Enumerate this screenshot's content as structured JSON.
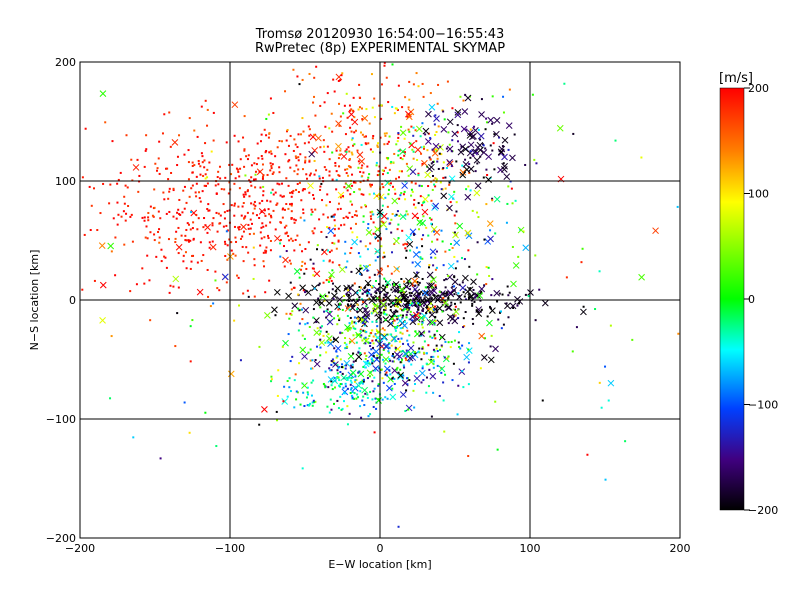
{
  "chart_data": {
    "type": "scatter",
    "title": "Tromsø 20120930 16:54:00−16:55:43",
    "subtitle": "RwPretec (8p) EXPERIMENTAL SKYMAP",
    "xlabel": "E−W location [km]",
    "ylabel": "N−S location [km]",
    "xlim": [
      -200,
      200
    ],
    "ylim": [
      -200,
      200
    ],
    "xticks": [
      -200,
      -100,
      0,
      100,
      200
    ],
    "yticks": [
      -200,
      -100,
      0,
      100,
      200
    ],
    "xtick_labels": [
      "−200",
      "−100",
      "0",
      "100",
      "200"
    ],
    "ytick_labels": [
      "−200",
      "−100",
      "0",
      "100",
      "200"
    ],
    "grid": true,
    "markers": {
      "small": "dot",
      "large": "x"
    },
    "colorbar": {
      "label": "[m/s]",
      "range": [
        -200,
        200
      ],
      "ticks": [
        200,
        100,
        0,
        -100,
        -200
      ],
      "tick_labels": [
        "200",
        "100",
        "0",
        "−100",
        "−200"
      ],
      "colors": [
        "#ff0000",
        "#ff8000",
        "#ffff00",
        "#00ff00",
        "#00ffff",
        "#0040ff",
        "#400080",
        "#000000"
      ]
    },
    "clusters": [
      {
        "cx": -85,
        "cy": 80,
        "sx": 50,
        "sy": 35,
        "n": 700,
        "v": 190,
        "vs": 15,
        "xfrac": 0.03
      },
      {
        "cx": -10,
        "cy": 140,
        "sx": 30,
        "sy": 30,
        "n": 180,
        "v": 170,
        "vs": 40,
        "xfrac": 0.05
      },
      {
        "cx": 20,
        "cy": 110,
        "sx": 25,
        "sy": 35,
        "n": 200,
        "v": 60,
        "vs": 90,
        "xfrac": 0.12
      },
      {
        "cx": 60,
        "cy": 125,
        "sx": 18,
        "sy": 18,
        "n": 120,
        "v": -170,
        "vs": 25,
        "xfrac": 0.5
      },
      {
        "cx": 20,
        "cy": 0,
        "sx": 35,
        "sy": 10,
        "n": 420,
        "v": -190,
        "vs": 20,
        "xfrac": 0.3
      },
      {
        "cx": 0,
        "cy": -25,
        "sx": 30,
        "sy": 20,
        "n": 320,
        "v": 30,
        "vs": 70,
        "xfrac": 0.12
      },
      {
        "cx": 5,
        "cy": -50,
        "sx": 28,
        "sy": 18,
        "n": 260,
        "v": -110,
        "vs": 60,
        "xfrac": 0.2
      },
      {
        "cx": -25,
        "cy": -78,
        "sx": 18,
        "sy": 9,
        "n": 120,
        "v": -40,
        "vs": 40,
        "xfrac": 0.1
      },
      {
        "cx": 20,
        "cy": 40,
        "sx": 40,
        "sy": 30,
        "n": 220,
        "v": -20,
        "vs": 110,
        "xfrac": 0.15
      },
      {
        "cx": 0,
        "cy": 0,
        "sx": 120,
        "sy": 100,
        "n": 180,
        "v": 40,
        "vs": 140,
        "xfrac": 0.25
      }
    ]
  }
}
